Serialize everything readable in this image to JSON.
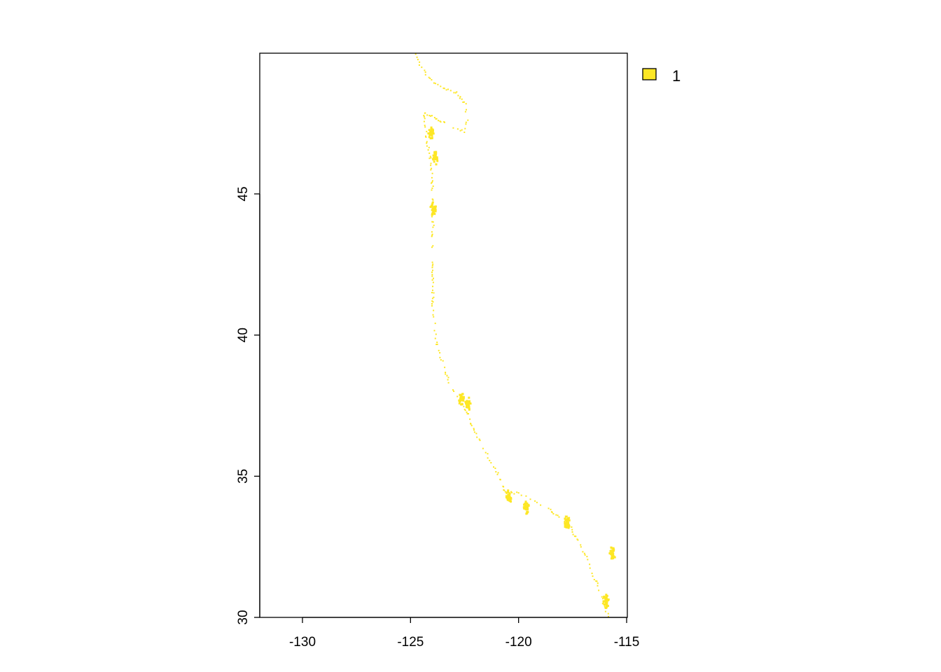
{
  "map": {
    "x_axis": {
      "range": [
        -132,
        -115
      ],
      "ticks": [
        -130,
        -125,
        -120,
        -115
      ],
      "tick_labels": [
        "-130",
        "-125",
        "-120",
        "-115"
      ]
    },
    "y_axis": {
      "range": [
        30,
        50
      ],
      "ticks": [
        30,
        35,
        40,
        45
      ],
      "tick_labels": [
        "30",
        "35",
        "40",
        "45"
      ]
    },
    "raster_color": "#FDE725",
    "frame_color": "#000000",
    "legend": {
      "entries": [
        {
          "label": "1",
          "color": "#FDE725"
        }
      ]
    },
    "coastline_lonlat": [
      [
        -124.8,
        49.95
      ],
      [
        -124.6,
        49.6
      ],
      [
        -124.3,
        49.2
      ],
      [
        -123.6,
        48.8
      ],
      [
        -122.9,
        48.6
      ],
      [
        -122.5,
        48.2
      ],
      [
        -122.4,
        47.6
      ],
      [
        -122.5,
        47.2
      ],
      [
        -124.4,
        47.9
      ],
      [
        -124.3,
        47.0
      ],
      [
        -124.1,
        46.2
      ],
      [
        -124.0,
        45.0
      ],
      [
        -124.0,
        43.5
      ],
      [
        -124.0,
        42.0
      ],
      [
        -124.0,
        41.0
      ],
      [
        -123.8,
        39.6
      ],
      [
        -123.2,
        38.2
      ],
      [
        -122.8,
        37.8
      ],
      [
        -122.4,
        37.2
      ],
      [
        -122.0,
        36.5
      ],
      [
        -121.5,
        35.8
      ],
      [
        -120.9,
        35.0
      ],
      [
        -120.7,
        34.5
      ],
      [
        -120.0,
        34.4
      ],
      [
        -119.2,
        34.1
      ],
      [
        -118.5,
        33.8
      ],
      [
        -117.7,
        33.3
      ],
      [
        -117.2,
        32.6
      ],
      [
        -116.7,
        31.8
      ],
      [
        -116.3,
        31.0
      ],
      [
        -116.0,
        30.3
      ],
      [
        -115.8,
        30.0
      ]
    ],
    "water_bodies_lonlat": [
      [
        -124.1,
        47.2
      ],
      [
        -123.9,
        46.3
      ],
      [
        -124.0,
        44.5
      ],
      [
        -122.7,
        37.8
      ],
      [
        -122.4,
        37.6
      ],
      [
        -120.5,
        34.3
      ],
      [
        -119.7,
        33.9
      ],
      [
        -117.8,
        33.4
      ],
      [
        -116.0,
        30.6
      ],
      [
        -115.7,
        32.3
      ]
    ]
  }
}
